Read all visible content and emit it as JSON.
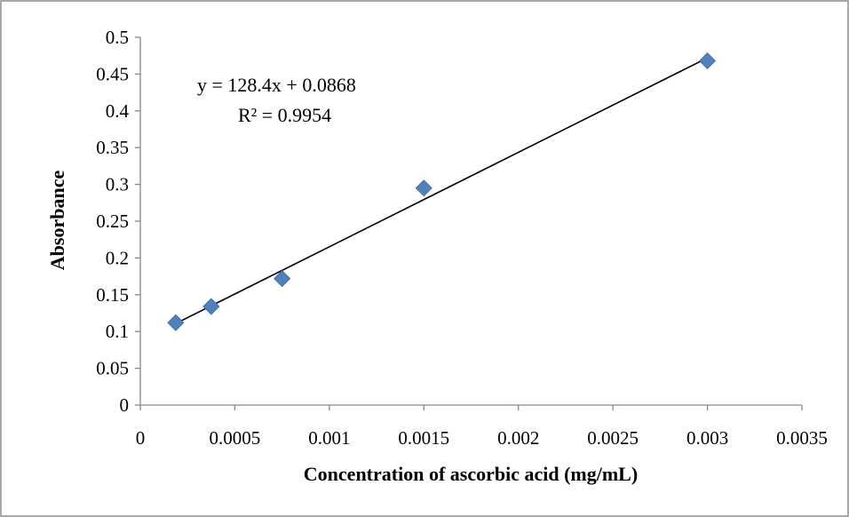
{
  "chart_data": {
    "type": "scatter",
    "title": "",
    "xlabel": "Concentration of ascorbic acid (mg/mL)",
    "ylabel": "Absorbance",
    "xlim": [
      0,
      0.0035
    ],
    "ylim": [
      0,
      0.5
    ],
    "x_ticks": [
      "0",
      "0.0005",
      "0.001",
      "0.0015",
      "0.002",
      "0.0025",
      "0.003",
      "0.0035"
    ],
    "y_ticks": [
      "0",
      "0.05",
      "0.1",
      "0.15",
      "0.2",
      "0.25",
      "0.3",
      "0.35",
      "0.4",
      "0.45",
      "0.5"
    ],
    "grid": false,
    "legend": "none",
    "series": [
      {
        "marker": "diamond",
        "color": "#4F81BD",
        "x": [
          0.0001875,
          0.000375,
          0.00075,
          0.0015,
          0.003
        ],
        "y": [
          0.112,
          0.134,
          0.172,
          0.295,
          0.468
        ]
      }
    ],
    "trendline": {
      "type": "linear",
      "slope": 128.4,
      "intercept": 0.0868,
      "x_range": [
        0.0001875,
        0.003
      ],
      "color": "#000000"
    },
    "annotations": {
      "equation": "y = 128.4x + 0.0868",
      "r_squared": "R² = 0.9954"
    }
  }
}
